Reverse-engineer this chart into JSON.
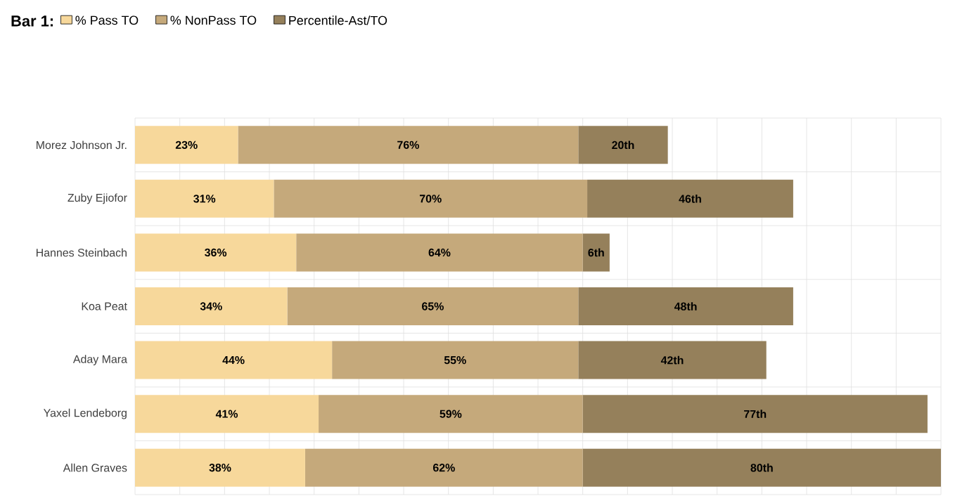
{
  "chart_data": {
    "type": "bar",
    "orientation": "horizontal",
    "stacked": true,
    "legend_title": "Bar 1:",
    "legend": "top",
    "grid": true,
    "tick_labels": "y",
    "categories": [
      "Morez Johnson Jr.",
      "Zuby Ejiofor",
      "Hannes Steinbach",
      "Koa Peat",
      "Aday Mara",
      "Yaxel Lendeborg",
      "Allen Graves"
    ],
    "series": [
      {
        "name": "% Pass TO",
        "color": "#f7d89b",
        "values": [
          23,
          31,
          36,
          34,
          44,
          41,
          38
        ],
        "value_labels": [
          "23%",
          "31%",
          "36%",
          "34%",
          "44%",
          "41%",
          "38%"
        ]
      },
      {
        "name": "% NonPass TO",
        "color": "#c5a97b",
        "values": [
          76,
          70,
          64,
          65,
          55,
          59,
          62
        ],
        "value_labels": [
          "76%",
          "70%",
          "64%",
          "65%",
          "55%",
          "59%",
          "62%"
        ]
      },
      {
        "name": "Percentile-Ast/TO",
        "color": "#95805b",
        "values": [
          20,
          46,
          6,
          48,
          42,
          77,
          80
        ],
        "value_labels": [
          "20th",
          "46th",
          "6th",
          "48th",
          "42th",
          "77th",
          "80th"
        ]
      }
    ]
  }
}
